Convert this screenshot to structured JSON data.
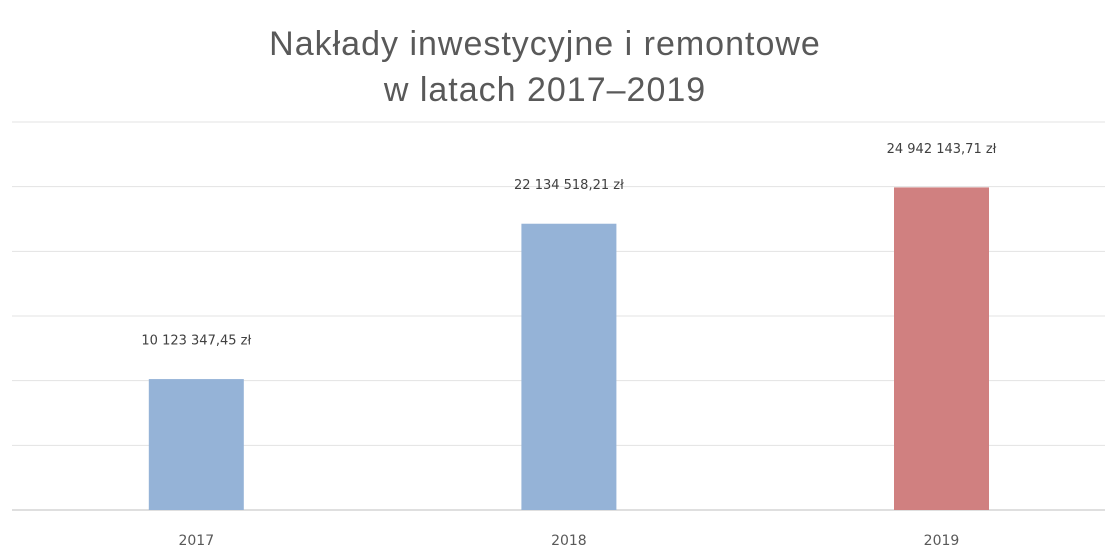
{
  "chart_data": {
    "type": "bar",
    "title": [
      "Nakłady inwestycyjne i remontowe",
      "w latach 2017–2019"
    ],
    "categories": [
      "2017",
      "2018",
      "2019"
    ],
    "values": [
      10123347.45,
      22134518.21,
      24942143.71
    ],
    "value_labels": [
      "10 123 347,45 zł",
      "22 134 518,21 zł",
      "24 942 143,71 zł"
    ],
    "colors": [
      "#95b3d7",
      "#95b3d7",
      "#d08080"
    ],
    "ylim": [
      0,
      30000000
    ],
    "yticks": [
      0,
      5000000,
      10000000,
      15000000,
      20000000,
      25000000,
      30000000
    ],
    "grid": true
  }
}
